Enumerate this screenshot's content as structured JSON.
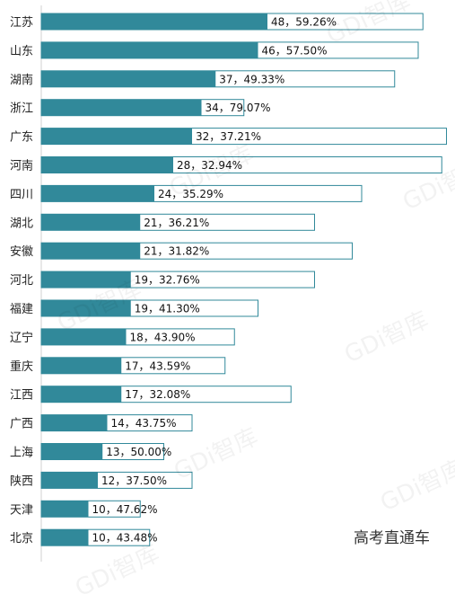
{
  "chart_data": {
    "type": "bar",
    "orientation": "horizontal",
    "categories": [
      "江苏",
      "山东",
      "湖南",
      "浙江",
      "广东",
      "河南",
      "四川",
      "湖北",
      "安徽",
      "河北",
      "福建",
      "辽宁",
      "重庆",
      "江西",
      "广西",
      "上海",
      "陕西",
      "天津",
      "北京"
    ],
    "series": [
      {
        "values": [
          48,
          46,
          37,
          34,
          32,
          28,
          24,
          21,
          21,
          19,
          19,
          18,
          17,
          17,
          14,
          13,
          12,
          10,
          10
        ],
        "color": "#31899a"
      },
      {
        "values": [
          81,
          80,
          75,
          43,
          86,
          85,
          68,
          58,
          66,
          58,
          46,
          41,
          39,
          53,
          32,
          26,
          32,
          21,
          23
        ],
        "color": "#ffffff",
        "border": "#31899a"
      }
    ],
    "data_labels": [
      "48，59.26%",
      "46，57.50%",
      "37，49.33%",
      "34，79.07%",
      "32，37.21%",
      "28，32.94%",
      "24，35.29%",
      "21，36.21%",
      "21，31.82%",
      "19，32.76%",
      "19，41.30%",
      "18，43.90%",
      "17，43.59%",
      "17，32.08%",
      "14，43.75%",
      "13，50.00%",
      "12，37.50%",
      "10，47.62%",
      "10，43.48%"
    ],
    "grid": false,
    "legend": "none"
  },
  "watermark_text": "GDi智库",
  "source_text": "高考直通车"
}
